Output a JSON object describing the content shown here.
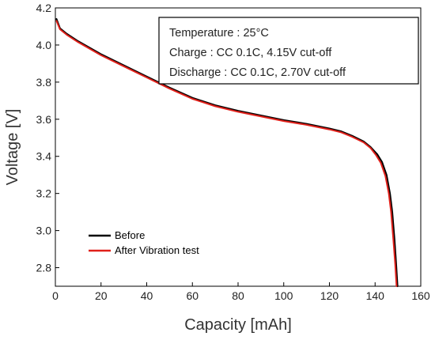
{
  "chart_data": {
    "type": "line",
    "xlabel": "Capacity [mAh]",
    "ylabel": "Voltage [V]",
    "xlim": [
      0,
      160
    ],
    "ylim": [
      2.7,
      4.2
    ],
    "xticks": [
      0,
      20,
      40,
      60,
      80,
      100,
      120,
      140,
      160
    ],
    "yticks": [
      2.8,
      3.0,
      3.2,
      3.4,
      3.6,
      3.8,
      4.0,
      4.2
    ],
    "grid": false,
    "legend_position": "bottom-left",
    "annotation": {
      "lines": [
        "Temperature : 25°C",
        "Charge : CC 0.1C, 4.15V cut-off",
        "Discharge : CC 0.1C, 2.70V cut-off"
      ]
    },
    "series": [
      {
        "name": "Before",
        "color": "#000000",
        "x": [
          0.5,
          2,
          5,
          10,
          20,
          30,
          40,
          50,
          60,
          70,
          80,
          90,
          100,
          110,
          120,
          125,
          130,
          135,
          138,
          141,
          143,
          145,
          146.5,
          147.5,
          148.5,
          149.2,
          149.8
        ],
        "y": [
          4.14,
          4.09,
          4.06,
          4.02,
          3.95,
          3.89,
          3.83,
          3.77,
          3.715,
          3.675,
          3.645,
          3.62,
          3.595,
          3.575,
          3.55,
          3.535,
          3.51,
          3.48,
          3.45,
          3.41,
          3.37,
          3.3,
          3.2,
          3.1,
          2.95,
          2.82,
          2.7
        ]
      },
      {
        "name": "After Vibration test",
        "color": "#e0201a",
        "x": [
          0.5,
          2,
          5,
          10,
          20,
          30,
          40,
          50,
          60,
          70,
          80,
          90,
          100,
          110,
          120,
          125,
          130,
          135,
          138,
          140.5,
          142.5,
          144.5,
          146,
          147,
          148,
          148.8,
          149.4
        ],
        "y": [
          4.13,
          4.085,
          4.055,
          4.015,
          3.945,
          3.885,
          3.825,
          3.765,
          3.71,
          3.67,
          3.64,
          3.615,
          3.59,
          3.57,
          3.545,
          3.53,
          3.505,
          3.475,
          3.445,
          3.405,
          3.365,
          3.295,
          3.2,
          3.1,
          2.95,
          2.82,
          2.7
        ]
      }
    ]
  }
}
